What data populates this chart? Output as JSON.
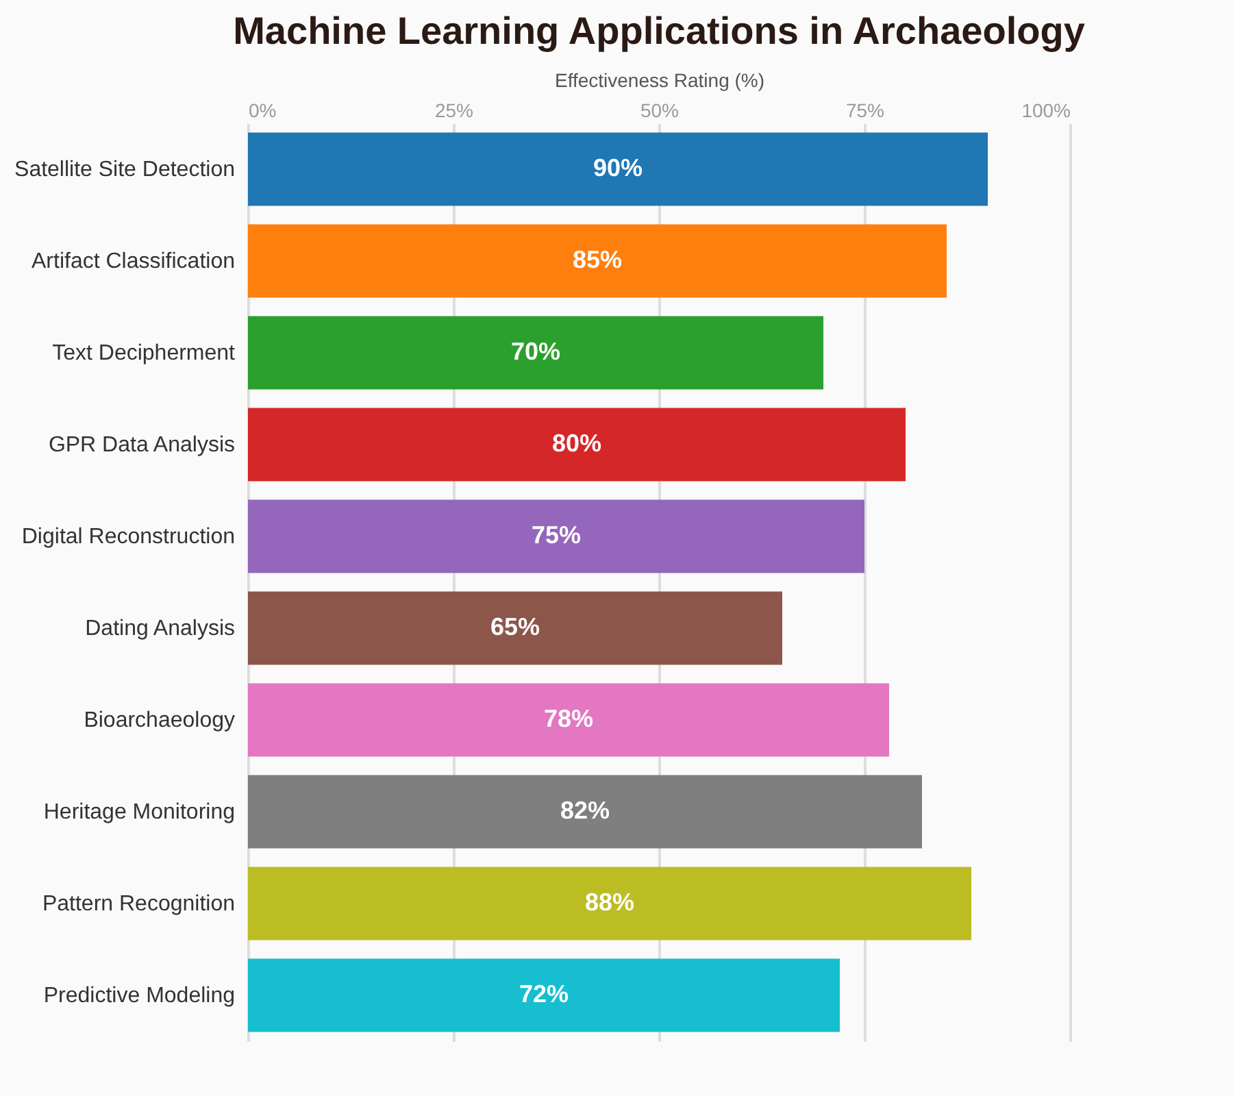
{
  "chart_data": {
    "type": "bar",
    "orientation": "horizontal",
    "title": "Machine Learning Applications in Archaeology",
    "xlabel": "Effectiveness Rating (%)",
    "categories": [
      "Satellite Site Detection",
      "Artifact Classification",
      "Text Decipherment",
      "GPR Data Analysis",
      "Digital Reconstruction",
      "Dating Analysis",
      "Bioarchaeology",
      "Heritage Monitoring",
      "Pattern Recognition",
      "Predictive Modeling"
    ],
    "values": [
      90,
      85,
      70,
      80,
      75,
      65,
      78,
      82,
      88,
      72
    ],
    "colors": [
      "#1f77b4",
      "#ff7f0e",
      "#2ca02c",
      "#d62728",
      "#9467bd",
      "#8c564b",
      "#e377c2",
      "#7f7f7f",
      "#bcbd22",
      "#17becf"
    ],
    "xlim": [
      0,
      100
    ],
    "xticks": [
      {
        "value": 0,
        "label": "0%"
      },
      {
        "value": 25,
        "label": "25%"
      },
      {
        "value": 50,
        "label": "50%"
      },
      {
        "value": 75,
        "label": "75%"
      },
      {
        "value": 100,
        "label": "100%"
      }
    ],
    "value_labels": [
      "90%",
      "85%",
      "70%",
      "80%",
      "75%",
      "65%",
      "78%",
      "82%",
      "88%",
      "72%"
    ],
    "grid": "x"
  }
}
